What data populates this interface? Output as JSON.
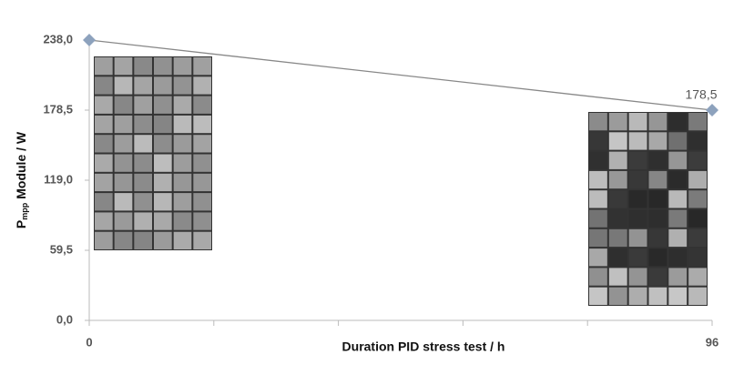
{
  "chart_data": {
    "type": "line",
    "ylabel": [
      "P",
      "mpp",
      "Module / W"
    ],
    "xlabel": "Duration PID stress test / h",
    "x": [
      0,
      96
    ],
    "series": [
      {
        "values": [
          238.0,
          178.5
        ],
        "value_labels": [
          null,
          "178,5"
        ],
        "color": "#8da2bd",
        "line_color": "#888888"
      }
    ],
    "xlim": [
      0,
      96
    ],
    "xticks": [
      0,
      96
    ],
    "ylim": [
      0,
      238.0
    ],
    "yticks": [
      {
        "value": 0,
        "label": "0,0"
      },
      {
        "value": 59.5,
        "label": "59,5"
      },
      {
        "value": 119.0,
        "label": "119,0"
      },
      {
        "value": 178.5,
        "label": "178,5"
      },
      {
        "value": 238.0,
        "label": "238,0"
      }
    ]
  }
}
